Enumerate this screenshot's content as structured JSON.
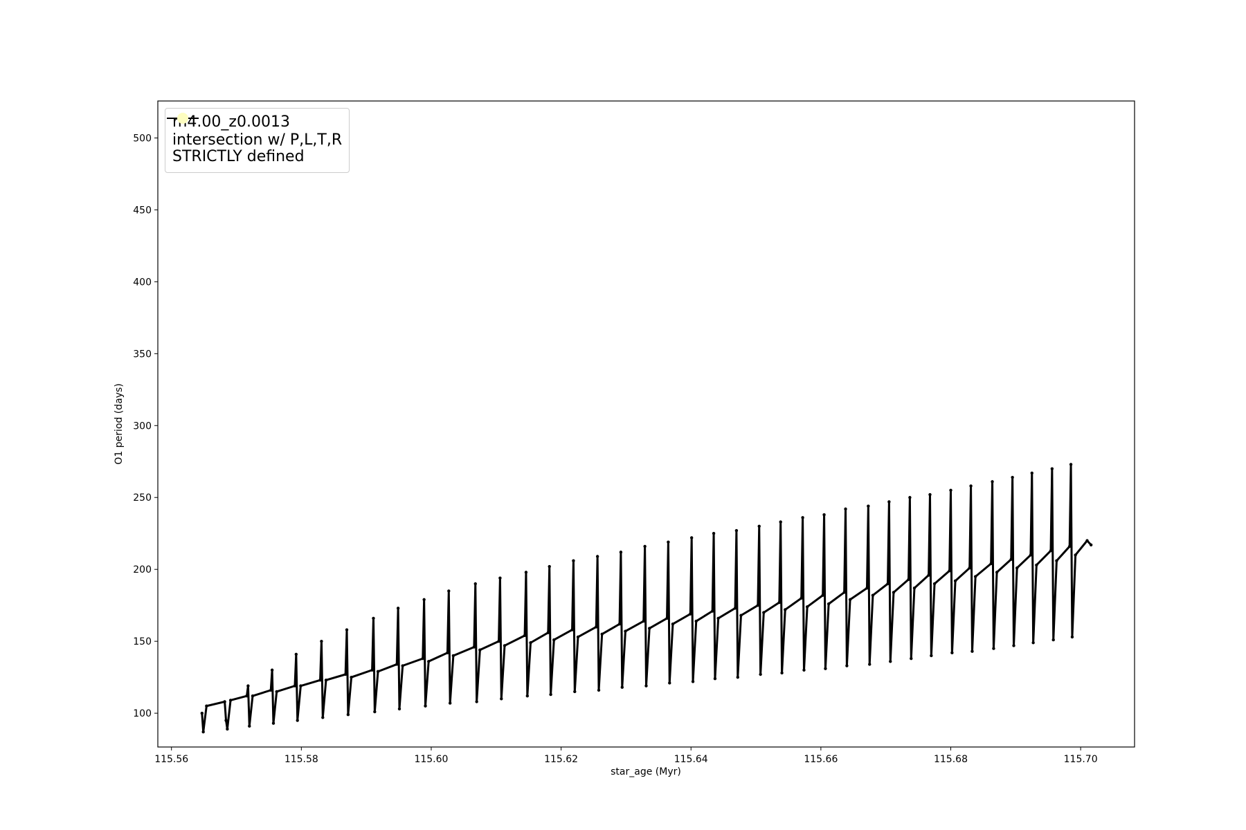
{
  "chart_data": {
    "type": "line",
    "x_label": "star_age (Myr)",
    "y_label": "O1 period (days)",
    "xlim": [
      115.5579,
      115.7083
    ],
    "ylim": [
      76.5,
      525.7
    ],
    "xticks": [
      115.56,
      115.58,
      {
        "value": 115.6,
        "label": "115.60"
      },
      115.62,
      115.64,
      115.66,
      115.68,
      {
        "value": 115.7,
        "label": "115.70"
      }
    ],
    "yticks": [
      100,
      150,
      200,
      250,
      300,
      350,
      400,
      450,
      500
    ],
    "grid": false,
    "legend": "upper left",
    "x": [
      115.5647,
      115.5649,
      115.5654,
      115.5682,
      115.5684,
      115.5686,
      115.5691,
      115.5716,
      115.5718,
      115.572,
      115.5725,
      115.5753,
      115.5755,
      115.5757,
      115.5762,
      115.579,
      115.5792,
      115.5794,
      115.5799,
      115.5829,
      115.5831,
      115.5833,
      115.5838,
      115.5868,
      115.587,
      115.5872,
      115.5877,
      115.5909,
      115.5911,
      115.5913,
      115.5918,
      115.5947,
      115.5949,
      115.5951,
      115.5956,
      115.5987,
      115.5989,
      115.5991,
      115.5996,
      115.6025,
      115.6027,
      115.6029,
      115.6034,
      115.6066,
      115.6068,
      115.607,
      115.6075,
      115.6104,
      115.6106,
      115.6108,
      115.6113,
      115.6144,
      115.6146,
      115.6148,
      115.6153,
      115.618,
      115.6182,
      115.6184,
      115.6189,
      115.6217,
      115.6219,
      115.6221,
      115.6226,
      115.6254,
      115.6256,
      115.6258,
      115.6263,
      115.629,
      115.6292,
      115.6294,
      115.6299,
      115.6327,
      115.6329,
      115.6331,
      115.6336,
      115.6363,
      115.6365,
      115.6367,
      115.6372,
      115.6399,
      115.6401,
      115.6403,
      115.6408,
      115.6433,
      115.6435,
      115.6437,
      115.6442,
      115.6468,
      115.647,
      115.6472,
      115.6477,
      115.6503,
      115.6505,
      115.6507,
      115.6512,
      115.6536,
      115.6538,
      115.654,
      115.6545,
      115.657,
      115.6572,
      115.6574,
      115.6579,
      115.6603,
      115.6605,
      115.6607,
      115.6612,
      115.6636,
      115.6638,
      115.664,
      115.6645,
      115.6671,
      115.6673,
      115.6675,
      115.668,
      115.6703,
      115.6705,
      115.6707,
      115.6712,
      115.6735,
      115.6737,
      115.6739,
      115.6744,
      115.6766,
      115.6768,
      115.677,
      115.6775,
      115.6798,
      115.68,
      115.6802,
      115.6807,
      115.6829,
      115.6831,
      115.6833,
      115.6838,
      115.6862,
      115.6864,
      115.6866,
      115.6871,
      115.6893,
      115.6895,
      115.6897,
      115.6902,
      115.6923,
      115.6925,
      115.6927,
      115.6932,
      115.6954,
      115.6956,
      115.6958,
      115.6963,
      115.6983,
      115.6985,
      115.6987,
      115.6992,
      115.701,
      115.7016
    ],
    "series": [
      {
        "name": "m4.00_z0.0013",
        "color": "#000000",
        "marker": true,
        "values": [
          100,
          87,
          105,
          108,
          95,
          89,
          109,
          112,
          119,
          91,
          112,
          116,
          130,
          93,
          115,
          119,
          141,
          95,
          119,
          123,
          150,
          97,
          123,
          127,
          158,
          99,
          125,
          130,
          166,
          101,
          129,
          134,
          173,
          103,
          133,
          138,
          179,
          105,
          136,
          142,
          185,
          107,
          140,
          146,
          190,
          108,
          144,
          150,
          194,
          110,
          147,
          154,
          198,
          112,
          149,
          156,
          202,
          113,
          151,
          158,
          206,
          115,
          153,
          160,
          209,
          116,
          155,
          162,
          212,
          118,
          157,
          164,
          216,
          119,
          159,
          166,
          219,
          121,
          162,
          169,
          222,
          122,
          164,
          171,
          225,
          124,
          166,
          173,
          227,
          125,
          168,
          175,
          230,
          127,
          170,
          177,
          233,
          128,
          172,
          180,
          236,
          130,
          174,
          182,
          238,
          131,
          176,
          184,
          242,
          133,
          179,
          187,
          244,
          134,
          182,
          190,
          247,
          136,
          184,
          193,
          250,
          138,
          187,
          196,
          252,
          140,
          190,
          199,
          255,
          142,
          192,
          201,
          258,
          143,
          195,
          204,
          261,
          145,
          198,
          207,
          264,
          147,
          201,
          210,
          267,
          149,
          203,
          213,
          270,
          151,
          206,
          216,
          273,
          153,
          210,
          220,
          217
        ]
      },
      {
        "name": "intersection w/ P,L,T,R\nSTRICTLY defined",
        "color": "#fdfdc0",
        "kind": "scatter",
        "x": [],
        "values": []
      }
    ]
  }
}
